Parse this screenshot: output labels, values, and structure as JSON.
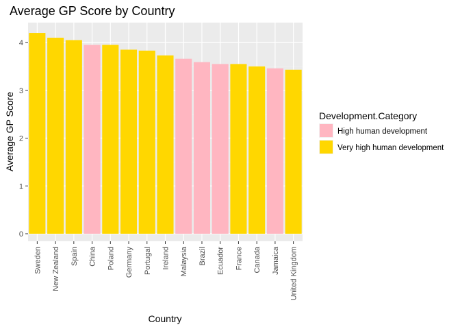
{
  "chart_data": {
    "type": "bar",
    "title": "Average GP Score by Country",
    "xlabel": "Country",
    "ylabel": "Average GP Score",
    "ylim": [
      0,
      4.35
    ],
    "yticks": [
      0,
      1,
      2,
      3,
      4
    ],
    "grid": true,
    "legend_position": "right",
    "legend_title": "Development.Category",
    "legend": [
      {
        "label": "High human development",
        "color": "#FFB6C1"
      },
      {
        "label": "Very high human development",
        "color": "#FFD700"
      }
    ],
    "categories": [
      "Sweden",
      "New Zealand",
      "Spain",
      "China",
      "Poland",
      "Germany",
      "Portugal",
      "Ireland",
      "Malaysia",
      "Brazil",
      "Ecuador",
      "France",
      "Canada",
      "Jamaica",
      "United Kingdom"
    ],
    "values": [
      4.2,
      4.1,
      4.05,
      3.95,
      3.95,
      3.85,
      3.83,
      3.73,
      3.66,
      3.59,
      3.55,
      3.55,
      3.5,
      3.46,
      3.43
    ],
    "groups": [
      1,
      1,
      1,
      0,
      1,
      1,
      1,
      1,
      0,
      0,
      0,
      1,
      1,
      0,
      1
    ]
  }
}
